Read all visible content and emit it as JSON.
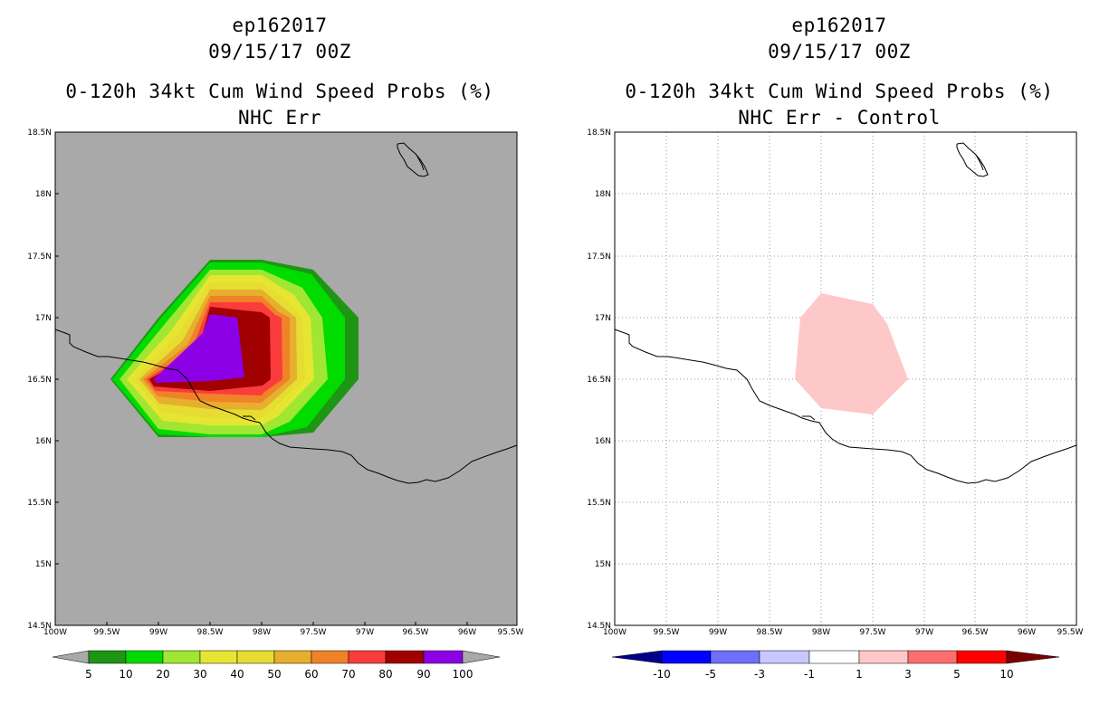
{
  "panels": [
    {
      "title_line1": "ep162017",
      "title_line2": "09/15/17 00Z",
      "title_line3": "0-120h 34kt Cum Wind Speed Probs (%)",
      "title_line4": "NHC Err",
      "background_color": "#a9a9a9",
      "colorbar_labels": [
        "5",
        "10",
        "20",
        "30",
        "40",
        "50",
        "60",
        "70",
        "80",
        "90",
        "100"
      ],
      "colorbar_colors": [
        "#1e9614",
        "#00dc00",
        "#a0e632",
        "#e6e632",
        "#e6dc32",
        "#e6af2d",
        "#f08228",
        "#fa3c3c",
        "#a00000",
        "#8c00e6"
      ]
    },
    {
      "title_line1": "ep162017",
      "title_line2": "09/15/17 00Z",
      "title_line3": "0-120h 34kt Cum Wind Speed Probs (%)",
      "title_line4": "NHC Err - Control",
      "background_color": "#ffffff",
      "colorbar_labels": [
        "-10",
        "-5",
        "-3",
        "-1",
        "1",
        "3",
        "5",
        "10"
      ],
      "colorbar_colors": [
        "#0000ff",
        "#6e6eff",
        "#c8c8ff",
        "#ffffff",
        "#ffc8c8",
        "#ff6e6e",
        "#ff0000"
      ],
      "end_low_color": "#00008c",
      "end_high_color": "#780000"
    }
  ],
  "axes": {
    "lat_labels": [
      "18.5N",
      "18N",
      "17.5N",
      "17N",
      "16.5N",
      "16N",
      "15.5N",
      "15N",
      "14.5N"
    ],
    "lon_labels": [
      "100W",
      "99.5W",
      "99W",
      "98.5W",
      "98W",
      "97.5W",
      "97W",
      "96.5W",
      "96W",
      "95.5W"
    ]
  }
}
